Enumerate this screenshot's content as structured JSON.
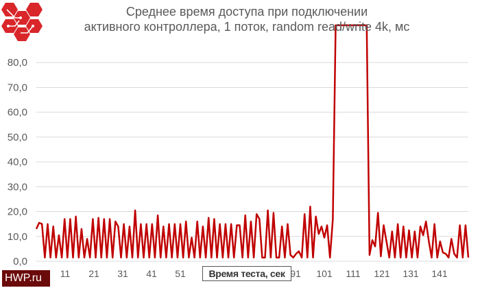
{
  "chart_data": {
    "type": "line",
    "title": "Среднее время доступа при подключении активного контроллера, 1 поток, random read/write 4k, мс",
    "title_lines": [
      "Среднее время доступа при подключении",
      "активного контроллера, 1 поток, random read/write 4k, мс"
    ],
    "xlabel": "Время теста, сек",
    "ylabel": "",
    "ylim": [
      0,
      90
    ],
    "xlim": [
      1,
      151
    ],
    "y_ticks": [
      0,
      10,
      20,
      30,
      40,
      50,
      60,
      70,
      80
    ],
    "y_tick_labels": [
      "0,0",
      "10,0",
      "20,0",
      "30,0",
      "40,0",
      "50,0",
      "60,0",
      "70,0",
      "80,0"
    ],
    "x_tick_labels": [
      "11",
      "21",
      "31",
      "41",
      "51",
      "91",
      "101",
      "111",
      "121",
      "131",
      "141"
    ],
    "x_tick_values": [
      11,
      21,
      31,
      41,
      51,
      91,
      101,
      111,
      121,
      131,
      141
    ],
    "grid": true,
    "line_color": "#c00000",
    "series": [
      {
        "name": "",
        "values": [
          13,
          15.5,
          15,
          1.5,
          15,
          1.5,
          14,
          1.5,
          10.5,
          1.5,
          17,
          1.5,
          17,
          1.5,
          18,
          1.5,
          13,
          1.5,
          9,
          1.5,
          17,
          1.5,
          17.5,
          1.5,
          17,
          1.5,
          17,
          1.5,
          16,
          14,
          1.5,
          15,
          1.5,
          14,
          1.5,
          20.5,
          1.5,
          15,
          1.5,
          15,
          1.5,
          15,
          1.5,
          18.5,
          1.5,
          14,
          1.5,
          15,
          1.5,
          15,
          1.5,
          15,
          1.5,
          16,
          1.5,
          9.5,
          1.5,
          16,
          1.5,
          14,
          1.5,
          17.5,
          1.5,
          17,
          1.5,
          15,
          1.5,
          15,
          1.5,
          15,
          1.5,
          14.5,
          14.5,
          1.5,
          18.5,
          1.5,
          16,
          1.5,
          19,
          17,
          1.5,
          1.5,
          20.5,
          1.5,
          19.5,
          1.5,
          1.5,
          14,
          1.5,
          15,
          2.5,
          1.5,
          3,
          4,
          1.5,
          19,
          1.5,
          22,
          1.5,
          18,
          11,
          14,
          9.5,
          14.5,
          1.5,
          17,
          95,
          95,
          95,
          95,
          95,
          95,
          95,
          95,
          95,
          95,
          95,
          95,
          2.5,
          8.5,
          6,
          19.5,
          2,
          14.5,
          8,
          1.5,
          12,
          1.5,
          15,
          1.5,
          14,
          1.5,
          12.5,
          1.5,
          12,
          1.5,
          14,
          10.5,
          16,
          8,
          1.5,
          15,
          1.5,
          8,
          3.5,
          3,
          1.5,
          9,
          3,
          1.5,
          14.5,
          1.5,
          14.5,
          1.5
        ]
      }
    ]
  },
  "watermark_text": "HWP.ru",
  "logo_name": "hwp-logo"
}
